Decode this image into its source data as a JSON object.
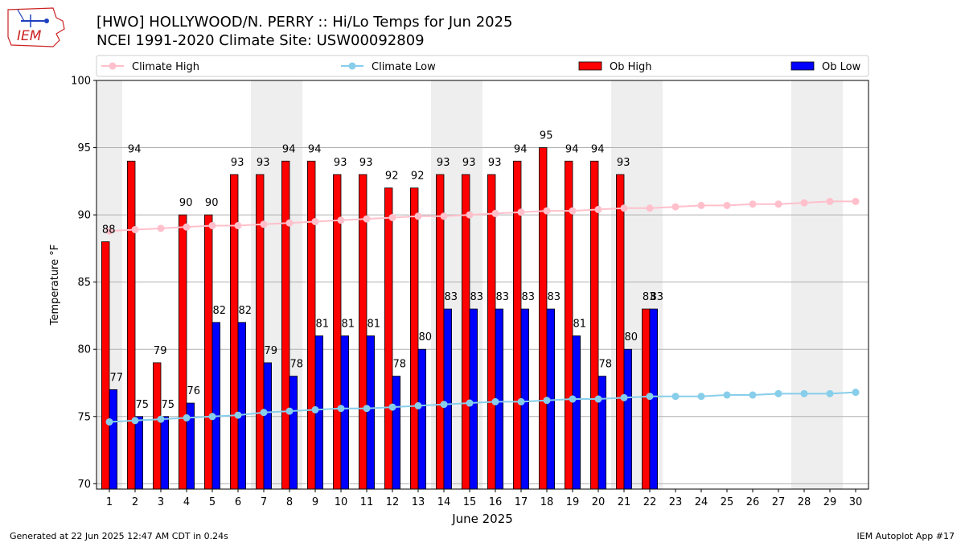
{
  "header": {
    "title_line1": "[HWO] HOLLYWOOD/N. PERRY :: Hi/Lo Temps for Jun 2025",
    "title_line2": "NCEI 1991-2020 Climate Site: USW00092809"
  },
  "logo": {
    "text": "IEM"
  },
  "footer": {
    "generated": "Generated at 22 Jun 2025 12:47 AM CDT in 0.24s",
    "app": "IEM Autoplot App #17"
  },
  "chart_data": {
    "type": "bar",
    "xlabel": "June 2025",
    "ylabel": "Temperature °F",
    "ylim": [
      69.6,
      100
    ],
    "yticks": [
      70,
      75,
      80,
      85,
      90,
      95,
      100
    ],
    "xlim": [
      0.5,
      30.5
    ],
    "days": [
      1,
      2,
      3,
      4,
      5,
      6,
      7,
      8,
      9,
      10,
      11,
      12,
      13,
      14,
      15,
      16,
      17,
      18,
      19,
      20,
      21,
      22,
      23,
      24,
      25,
      26,
      27,
      28,
      29,
      30
    ],
    "weekend_shading": [
      [
        1,
        1
      ],
      [
        7,
        8
      ],
      [
        14,
        15
      ],
      [
        21,
        22
      ],
      [
        28,
        29
      ]
    ],
    "grid": "y-major",
    "legend_position": "top",
    "series": [
      {
        "name": "Climate High",
        "kind": "line",
        "color": "#FFC0CB",
        "values": [
          88.8,
          88.9,
          89.0,
          89.1,
          89.2,
          89.2,
          89.3,
          89.4,
          89.5,
          89.6,
          89.7,
          89.8,
          89.9,
          89.9,
          90.0,
          90.1,
          90.2,
          90.3,
          90.3,
          90.4,
          90.5,
          90.5,
          90.6,
          90.7,
          90.7,
          90.8,
          90.8,
          90.9,
          91.0,
          91.0
        ]
      },
      {
        "name": "Climate Low",
        "kind": "line",
        "color": "#87CEEB",
        "values": [
          74.6,
          74.7,
          74.8,
          74.9,
          75.0,
          75.1,
          75.3,
          75.4,
          75.5,
          75.6,
          75.6,
          75.7,
          75.8,
          75.9,
          76.0,
          76.1,
          76.1,
          76.2,
          76.3,
          76.3,
          76.4,
          76.5,
          76.5,
          76.5,
          76.6,
          76.6,
          76.7,
          76.7,
          76.7,
          76.8
        ]
      },
      {
        "name": "Ob High",
        "kind": "bar",
        "color": "#FF0000",
        "values": [
          88,
          94,
          79,
          90,
          90,
          93,
          93,
          94,
          94,
          93,
          93,
          92,
          92,
          93,
          93,
          93,
          94,
          95,
          94,
          94,
          93,
          83
        ]
      },
      {
        "name": "Ob Low",
        "kind": "bar",
        "color": "#0000FF",
        "values": [
          77,
          75,
          75,
          76,
          82,
          82,
          79,
          78,
          81,
          81,
          81,
          78,
          80,
          83,
          83,
          83,
          83,
          83,
          81,
          78,
          80,
          83
        ]
      }
    ]
  }
}
